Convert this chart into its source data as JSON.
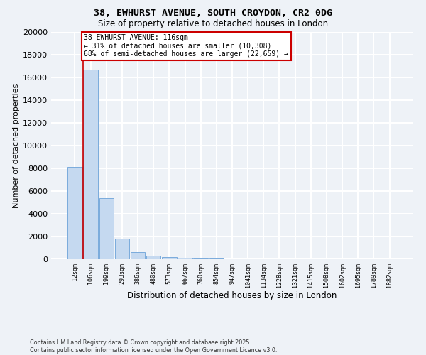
{
  "title1": "38, EWHURST AVENUE, SOUTH CROYDON, CR2 0DG",
  "title2": "Size of property relative to detached houses in London",
  "xlabel": "Distribution of detached houses by size in London",
  "ylabel": "Number of detached properties",
  "bar_color": "#c5d9f0",
  "bar_edge_color": "#7aabdc",
  "bin_labels": [
    "12sqm",
    "106sqm",
    "199sqm",
    "293sqm",
    "386sqm",
    "480sqm",
    "573sqm",
    "667sqm",
    "760sqm",
    "854sqm",
    "947sqm",
    "1041sqm",
    "1134sqm",
    "1228sqm",
    "1321sqm",
    "1415sqm",
    "1508sqm",
    "1602sqm",
    "1695sqm",
    "1789sqm",
    "1882sqm"
  ],
  "bar_heights": [
    8100,
    16700,
    5350,
    1800,
    600,
    300,
    175,
    100,
    75,
    50,
    30,
    15,
    10,
    8,
    5,
    4,
    3,
    2,
    2,
    1,
    1
  ],
  "ylim": [
    0,
    20000
  ],
  "yticks": [
    0,
    2000,
    4000,
    6000,
    8000,
    10000,
    12000,
    14000,
    16000,
    18000,
    20000
  ],
  "vline_color": "#cc0000",
  "annotation_text": "38 EWHURST AVENUE: 116sqm\n← 31% of detached houses are smaller (10,308)\n68% of semi-detached houses are larger (22,659) →",
  "annotation_box_color": "#ffffff",
  "annotation_box_edge": "#cc0000",
  "footer": "Contains HM Land Registry data © Crown copyright and database right 2025.\nContains public sector information licensed under the Open Government Licence v3.0.",
  "background_color": "#eef2f7",
  "grid_color": "#ffffff"
}
